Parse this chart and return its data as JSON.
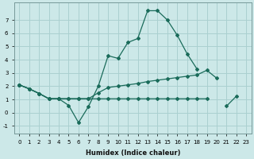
{
  "xlabel": "Humidex (Indice chaleur)",
  "ylabel": "",
  "bg_color": "#cce8e8",
  "grid_color": "#aad0d0",
  "line_color": "#1a6b5a",
  "xlim": [
    -0.5,
    23.5
  ],
  "ylim": [
    -1.6,
    8.3
  ],
  "yticks": [
    -1,
    0,
    1,
    2,
    3,
    4,
    5,
    6,
    7
  ],
  "xticks": [
    0,
    1,
    2,
    3,
    4,
    5,
    6,
    7,
    8,
    9,
    10,
    11,
    12,
    13,
    14,
    15,
    16,
    17,
    18,
    19,
    20,
    21,
    22,
    23
  ],
  "line1_y": [
    2.1,
    1.8,
    1.45,
    1.05,
    1.05,
    0.55,
    -0.75,
    0.45,
    2.0,
    4.3,
    4.1,
    5.3,
    5.6,
    7.7,
    7.7,
    7.0,
    5.85,
    4.45,
    3.3,
    null,
    null,
    0.5,
    1.25,
    null
  ],
  "line2_y": [
    2.1,
    1.8,
    1.45,
    1.05,
    1.05,
    1.05,
    1.05,
    1.05,
    1.5,
    1.9,
    2.0,
    2.1,
    2.2,
    2.35,
    2.45,
    2.55,
    2.65,
    2.75,
    2.85,
    3.2,
    2.6,
    null,
    null,
    null
  ],
  "line3_y": [
    2.1,
    1.8,
    1.45,
    1.05,
    1.05,
    1.05,
    1.05,
    1.05,
    1.05,
    1.05,
    1.05,
    1.05,
    1.05,
    1.05,
    1.05,
    1.05,
    1.05,
    1.05,
    1.05,
    1.05,
    null,
    null,
    null,
    null
  ]
}
